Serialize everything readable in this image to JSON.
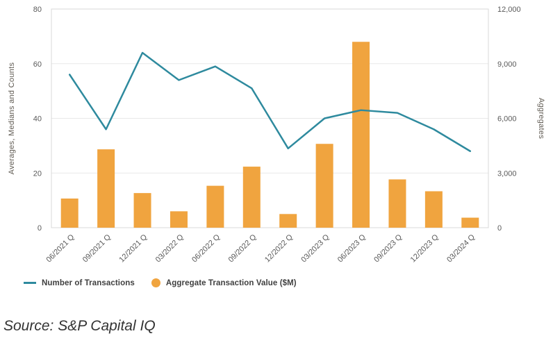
{
  "chart_data": {
    "type": "combo",
    "categories": [
      "06/2021 Q",
      "09/2021 Q",
      "12/2021 Q",
      "03/2022 Q",
      "06/2022 Q",
      "09/2022 Q",
      "12/2022 Q",
      "03/2023 Q",
      "06/2023 Q",
      "09/2023 Q",
      "12/2023 Q",
      "03/2024 Q"
    ],
    "series": [
      {
        "name": "Number of Transactions",
        "type": "line",
        "axis": "left",
        "color": "#2E8A9E",
        "values": [
          56,
          36,
          64,
          54,
          59,
          51,
          29,
          40,
          43,
          42,
          36,
          28
        ]
      },
      {
        "name": "Aggregate Transaction Value ($M)",
        "type": "bar",
        "axis": "right",
        "color": "#F0A43F",
        "values": [
          1600,
          4300,
          1900,
          900,
          2300,
          3350,
          750,
          4600,
          10200,
          2650,
          2000,
          550
        ]
      }
    ],
    "left_axis": {
      "label": "Averages, Medians and Counts",
      "min": 0,
      "max": 80,
      "ticks": [
        0,
        20,
        40,
        60,
        80
      ]
    },
    "right_axis": {
      "label": "Aggregates",
      "min": 0,
      "max": 12000,
      "tick_labels": [
        "0",
        "3,000",
        "6,000",
        "9,000",
        "12,000"
      ]
    },
    "grid": true,
    "grid_color": "#E9E9E9",
    "border_color": "#D8D8D8",
    "legend_position": "bottom"
  },
  "legend": {
    "items": [
      {
        "label": "Number of Transactions",
        "color": "#2E8A9E",
        "marker": "line"
      },
      {
        "label": "Aggregate Transaction Value ($M)",
        "color": "#F0A43F",
        "marker": "circle"
      }
    ]
  },
  "source": {
    "text": "Source: S&P Capital IQ"
  }
}
